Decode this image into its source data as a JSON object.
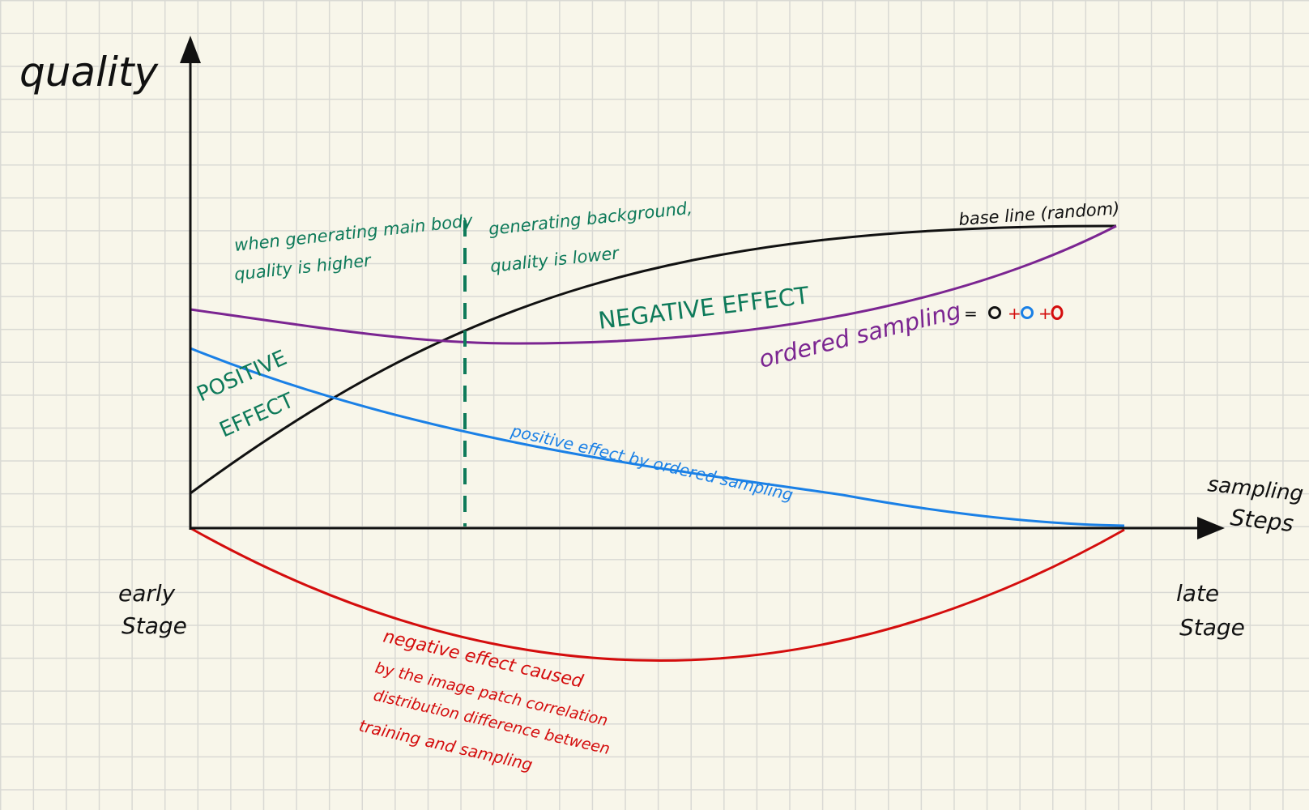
{
  "colors": {
    "axis": "#111111",
    "baseline": "#111111",
    "ordered": "#7b2591",
    "positive": "#1a80e6",
    "negative": "#d40d0d",
    "annotation": "#0e7a5a"
  },
  "axes": {
    "y_label": "quality",
    "x_label_line1": "sampling",
    "x_label_line2": "Steps",
    "early_line1": "early",
    "early_line2": "Stage",
    "late_line1": "late",
    "late_line2": "Stage"
  },
  "annotations": {
    "main_body_line1": "when generating main body",
    "main_body_line2": "quality is higher",
    "background_line1": "generating background,",
    "background_line2": "quality is lower",
    "negative_effect": "NEGATIVE   EFFECT",
    "positive_line1": "POSITIVE",
    "positive_line2": "EFFECT"
  },
  "curves": {
    "baseline_label": "base line (random)",
    "ordered_label": "ordered  sampling",
    "positive_label": "positive effect by ordered sampling",
    "negative_line1": "negative  effect  caused",
    "negative_line2": "by the  image patch correlation",
    "negative_line3": "distribution difference between",
    "negative_line4": "training and sampling"
  },
  "equation": {
    "equals": "=",
    "plus1": "+",
    "plus2": "+"
  }
}
